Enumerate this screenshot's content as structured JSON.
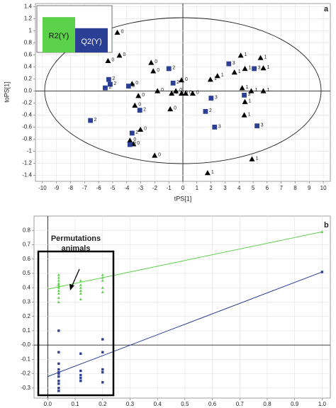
{
  "chart_data": [
    {
      "type": "scatter",
      "panel_label": "a",
      "xlabel": "tPS[1]",
      "ylabel": "toPS[1]",
      "xlim": [
        -10.5,
        10.5
      ],
      "ylim": [
        -1.5,
        1.45
      ],
      "xticks": [
        -10,
        -9,
        -8,
        -7,
        -6,
        -5,
        -4,
        -3,
        -2,
        -1,
        0,
        1,
        2,
        3,
        4,
        5,
        6,
        7,
        8,
        9,
        10
      ],
      "yticks": [
        1.4,
        1.2,
        1,
        0.8,
        0.6,
        0.4,
        0.2,
        {
          "value": 0,
          "label": "0.0"
        },
        -0.2,
        -0.4,
        -0.6,
        -0.8,
        -1,
        -1.2,
        -1.4
      ],
      "grid": true,
      "series": [
        {
          "name": "0",
          "color": "#000000",
          "marker": "triangle",
          "x": [
            -4.67,
            -4.52,
            -5.33,
            -2.26,
            -2.11,
            -3.62,
            -3.17,
            -3.42,
            -1.81,
            -0.8,
            -0.5,
            -0.1,
            0.2,
            0.7,
            -0.9,
            -3.02,
            -3.77,
            -3.52,
            -2.01,
            -0.1
          ],
          "values": [
            0.97,
            0.59,
            0.5,
            0.47,
            0.33,
            0.12,
            -0.08,
            -0.24,
            0,
            -0.04,
            0,
            -0.04,
            -0.04,
            -0.04,
            -0.3,
            -0.64,
            -0.82,
            -0.88,
            -1.07,
            0.18
          ]
        },
        {
          "name": "1",
          "color": "#000000",
          "marker": "triangle",
          "x": [
            4.12,
            5.53,
            4.42,
            5.73,
            3.67,
            2.46,
            1.96,
            4.87,
            4.22,
            5.73,
            4.42,
            4.37,
            4.92,
            1.76
          ],
          "values": [
            0.59,
            0.55,
            0.37,
            0.38,
            0.31,
            0.25,
            0.19,
            0,
            0.05,
            0,
            -0.18,
            -0.4,
            -1.13,
            -1.36
          ]
        },
        {
          "name": "2",
          "color": "#2b3f95",
          "marker": "square",
          "x": [
            -5.28,
            -5.18,
            -5.53,
            -3.87,
            -1.0,
            -0.7,
            -3.07,
            1.61,
            -6.58,
            -3.62,
            -3.77
          ],
          "values": [
            0.19,
            0.11,
            0.05,
            0.08,
            0.37,
            0.13,
            -0.32,
            -0.34,
            -0.49,
            -0.7,
            -0.89
          ]
        },
        {
          "name": "3",
          "color": "#2b3f95",
          "marker": "square",
          "x": [
            3.27,
            5.08,
            2.01,
            4.37,
            2.26,
            5.28
          ],
          "values": [
            0.45,
            0.37,
            -0.12,
            -0.07,
            -0.6,
            -0.58
          ]
        }
      ],
      "inset": {
        "type": "bar",
        "categories": [
          "R2(Y)",
          "Q2(Y)"
        ],
        "values": [
          0.83,
          0.57
        ],
        "colors": [
          "#5cd14a",
          "#2b3f95"
        ],
        "ylim": [
          0,
          1
        ]
      }
    },
    {
      "type": "scatter",
      "panel_label": "b",
      "annotation": [
        "Permutations",
        "animals"
      ],
      "xlim": [
        -0.05,
        1.03
      ],
      "ylim": [
        -0.37,
        0.9
      ],
      "xticks": [
        {
          "value": 0,
          "label": "0.0"
        },
        0.1,
        0.2,
        0.3,
        0.4,
        0.5,
        0.6,
        0.7,
        0.8,
        0.9,
        {
          "value": 1,
          "label": "1.0"
        }
      ],
      "yticks": [
        0.8,
        0.7,
        0.6,
        0.5,
        0.4,
        0.3,
        0.2,
        0.1,
        {
          "value": 0,
          "label": "-0.0"
        },
        -0.1,
        -0.2,
        -0.3
      ],
      "grid": true,
      "series": [
        {
          "color": "#5cd14a",
          "marker": "triangle",
          "x": [
            0.04,
            0.04,
            0.04,
            0.04,
            0.04,
            0.04,
            0.04,
            0.04,
            0.04,
            0.04,
            0.04,
            0.12,
            0.12,
            0.12,
            0.12,
            0.12,
            0.12,
            0.2,
            0.2,
            0.2,
            0.2,
            0.2,
            1
          ],
          "values": [
            0.49,
            0.47,
            0.45,
            0.43,
            0.42,
            0.41,
            0.4,
            0.38,
            0.36,
            0.33,
            0.3,
            0.45,
            0.42,
            0.4,
            0.38,
            0.36,
            0.32,
            0.49,
            0.47,
            0.45,
            0.4,
            0.37,
            0.79
          ]
        },
        {
          "color": "#2b3f95",
          "marker": "square",
          "x": [
            0.04,
            0.04,
            0.04,
            0.04,
            0.04,
            0.04,
            0.04,
            0.04,
            0.04,
            0.04,
            0.04,
            0.12,
            0.12,
            0.12,
            0.12,
            0.12,
            0.2,
            0.2,
            0.2,
            0.2,
            0.2,
            1
          ],
          "values": [
            0.1,
            -0.05,
            -0.13,
            -0.17,
            -0.19,
            -0.2,
            -0.22,
            -0.25,
            -0.27,
            -0.3,
            -0.32,
            -0.06,
            -0.18,
            -0.21,
            -0.23,
            -0.25,
            0.04,
            -0.05,
            -0.17,
            -0.19,
            -0.26,
            0.51
          ]
        }
      ],
      "lines": [
        {
          "color": "#5cd14a",
          "x": [
            0,
            1
          ],
          "values": [
            0.39,
            0.79
          ]
        },
        {
          "color": "#2b3f95",
          "x": [
            0,
            1
          ],
          "values": [
            -0.22,
            0.51
          ]
        }
      ]
    }
  ]
}
